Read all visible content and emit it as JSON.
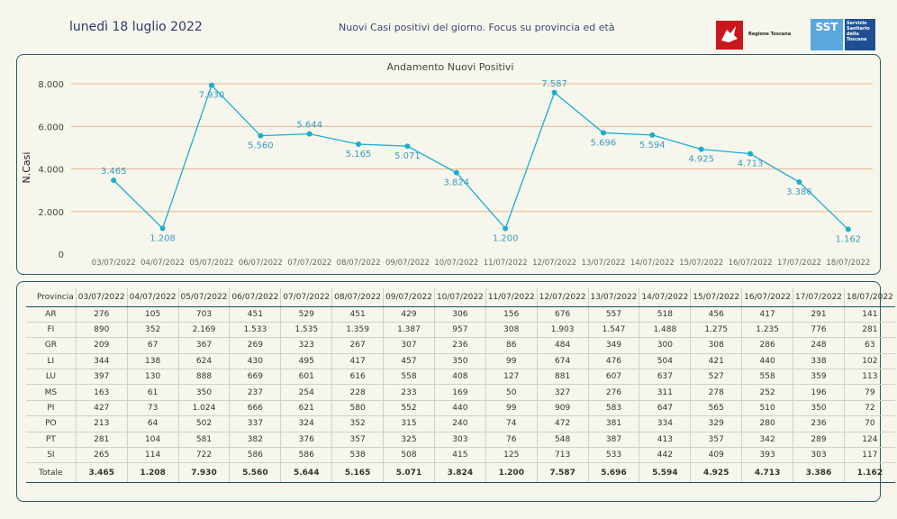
{
  "header": {
    "date": "lunedì 18 luglio 2022",
    "subtitle": "Nuovi Casi positivi del giorno. Focus su provincia ed età",
    "logo_rt": "Regione Toscana",
    "logo_sst_mark": "SST",
    "logo_sst_text": "Servizio Sanitario della Toscana"
  },
  "colors": {
    "line": "#1aaed0",
    "grid": "#e9b58f",
    "border": "#2a5a63",
    "background": "#f7f6ec"
  },
  "chart_data": {
    "type": "line",
    "title": "Andamento Nuovi Positivi",
    "ylabel": "N.Casi",
    "xlabel": "",
    "categories": [
      "03/07/2022",
      "04/07/2022",
      "05/07/2022",
      "06/07/2022",
      "07/07/2022",
      "08/07/2022",
      "09/07/2022",
      "10/07/2022",
      "11/07/2022",
      "12/07/2022",
      "13/07/2022",
      "14/07/2022",
      "15/07/2022",
      "16/07/2022",
      "17/07/2022",
      "18/07/2022"
    ],
    "values": [
      3465,
      1208,
      7930,
      5560,
      5644,
      5165,
      5071,
      3824,
      1200,
      7587,
      5696,
      5594,
      4925,
      4713,
      3386,
      1162
    ],
    "value_labels": [
      "3.465",
      "1.208",
      "7.930",
      "5.560",
      "5.644",
      "5.165",
      "5.071",
      "3.824",
      "1.200",
      "7.587",
      "5.696",
      "5.594",
      "4.925",
      "4.713",
      "3.386",
      "1.162"
    ],
    "ylim": [
      0,
      8000
    ],
    "yticks": [
      0,
      2000,
      4000,
      6000,
      8000
    ],
    "ytick_labels": [
      "0",
      "2.000",
      "4.000",
      "6.000",
      "8.000"
    ],
    "grid": true,
    "legend": "none"
  },
  "table": {
    "header_first": "Provincia",
    "dates": [
      "03/07/2022",
      "04/07/2022",
      "05/07/2022",
      "06/07/2022",
      "07/07/2022",
      "08/07/2022",
      "09/07/2022",
      "10/07/2022",
      "11/07/2022",
      "12/07/2022",
      "13/07/2022",
      "14/07/2022",
      "15/07/2022",
      "16/07/2022",
      "17/07/2022",
      "18/07/2022"
    ],
    "rows": [
      {
        "name": "AR",
        "values": [
          "276",
          "105",
          "703",
          "451",
          "529",
          "451",
          "429",
          "306",
          "156",
          "676",
          "557",
          "518",
          "456",
          "417",
          "291",
          "141"
        ]
      },
      {
        "name": "FI",
        "values": [
          "890",
          "352",
          "2.169",
          "1.533",
          "1.535",
          "1.359",
          "1.387",
          "957",
          "308",
          "1.903",
          "1.547",
          "1.488",
          "1.275",
          "1.235",
          "776",
          "281"
        ]
      },
      {
        "name": "GR",
        "values": [
          "209",
          "67",
          "367",
          "269",
          "323",
          "267",
          "307",
          "236",
          "86",
          "484",
          "349",
          "300",
          "308",
          "286",
          "248",
          "63"
        ]
      },
      {
        "name": "LI",
        "values": [
          "344",
          "138",
          "624",
          "430",
          "495",
          "417",
          "457",
          "350",
          "99",
          "674",
          "476",
          "504",
          "421",
          "440",
          "338",
          "102"
        ]
      },
      {
        "name": "LU",
        "values": [
          "397",
          "130",
          "888",
          "669",
          "601",
          "616",
          "558",
          "408",
          "127",
          "881",
          "607",
          "637",
          "527",
          "558",
          "359",
          "113"
        ]
      },
      {
        "name": "MS",
        "values": [
          "163",
          "61",
          "350",
          "237",
          "254",
          "228",
          "233",
          "169",
          "50",
          "327",
          "276",
          "311",
          "278",
          "252",
          "196",
          "79"
        ]
      },
      {
        "name": "PI",
        "values": [
          "427",
          "73",
          "1.024",
          "666",
          "621",
          "580",
          "552",
          "440",
          "99",
          "909",
          "583",
          "647",
          "565",
          "510",
          "350",
          "72"
        ]
      },
      {
        "name": "PO",
        "values": [
          "213",
          "64",
          "502",
          "337",
          "324",
          "352",
          "315",
          "240",
          "74",
          "472",
          "381",
          "334",
          "329",
          "280",
          "236",
          "70"
        ]
      },
      {
        "name": "PT",
        "values": [
          "281",
          "104",
          "581",
          "382",
          "376",
          "357",
          "325",
          "303",
          "76",
          "548",
          "387",
          "413",
          "357",
          "342",
          "289",
          "124"
        ]
      },
      {
        "name": "SI",
        "values": [
          "265",
          "114",
          "722",
          "586",
          "586",
          "538",
          "508",
          "415",
          "125",
          "713",
          "533",
          "442",
          "409",
          "393",
          "303",
          "117"
        ]
      }
    ],
    "total": {
      "name": "Totale",
      "values": [
        "3.465",
        "1.208",
        "7.930",
        "5.560",
        "5.644",
        "5.165",
        "5.071",
        "3.824",
        "1.200",
        "7.587",
        "5.696",
        "5.594",
        "4.925",
        "4.713",
        "3.386",
        "1.162"
      ]
    }
  }
}
